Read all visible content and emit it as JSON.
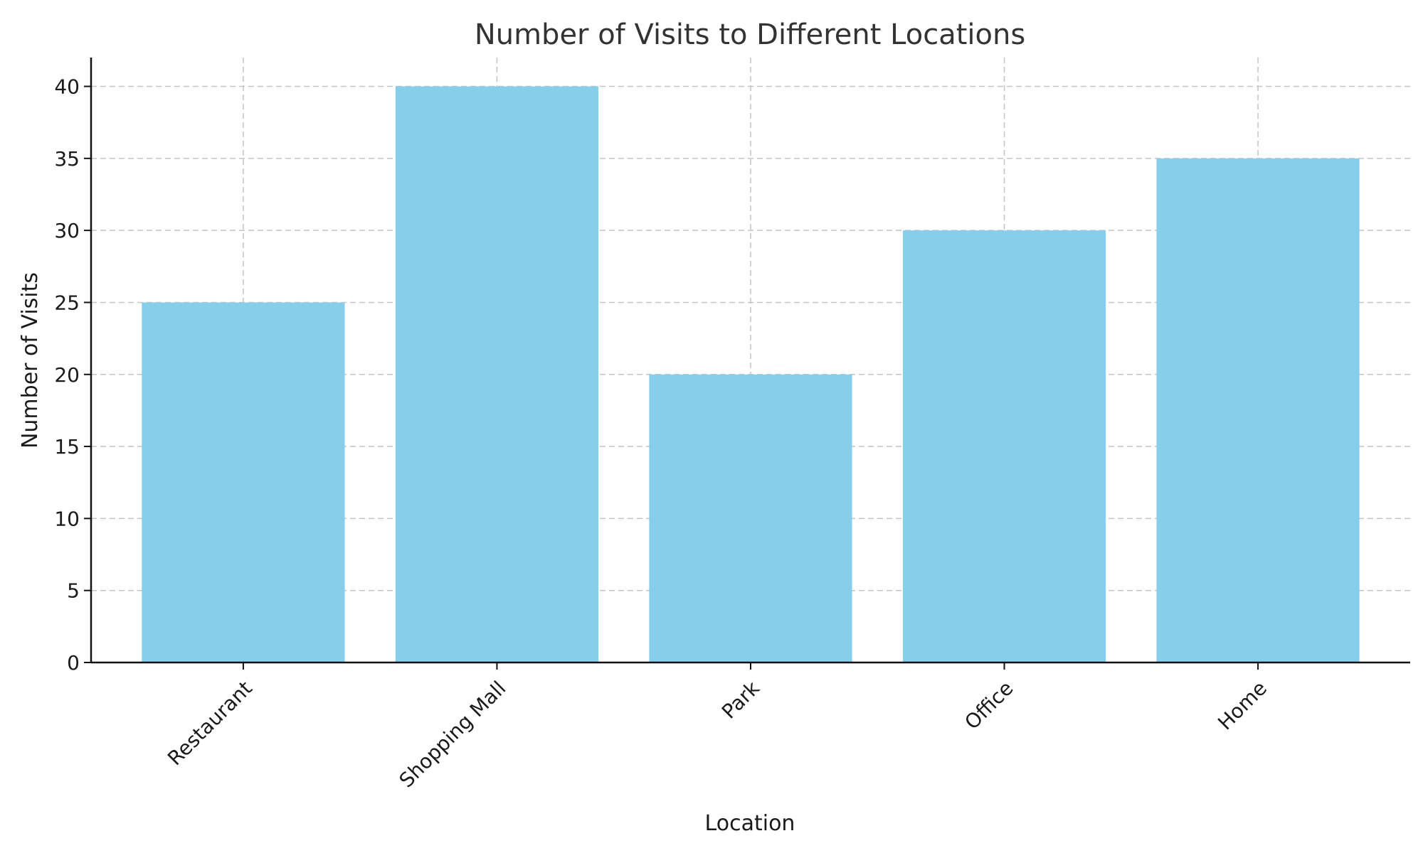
{
  "chart_data": {
    "type": "bar",
    "title": "Number of Visits to Different Locations",
    "xlabel": "Location",
    "ylabel": "Number of Visits",
    "categories": [
      "Restaurant",
      "Shopping Mall",
      "Park",
      "Office",
      "Home"
    ],
    "values": [
      25,
      40,
      20,
      30,
      35
    ],
    "ylim": [
      0,
      42
    ],
    "yticks": [
      0,
      5,
      10,
      15,
      20,
      25,
      30,
      35,
      40
    ],
    "grid": true,
    "bar_color": "#87CEEB",
    "xtick_rotation_deg": 45
  }
}
